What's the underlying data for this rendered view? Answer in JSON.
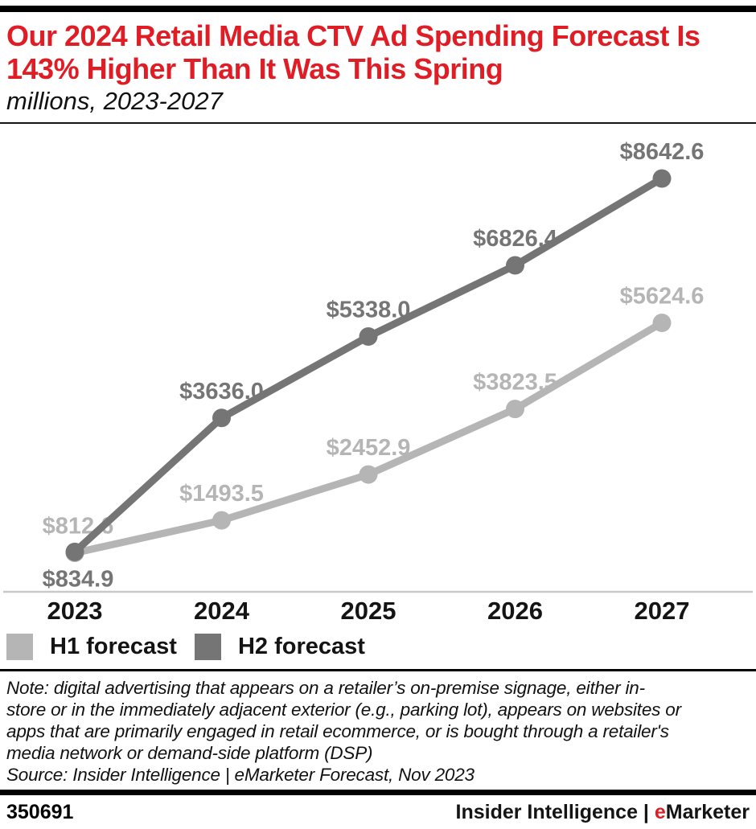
{
  "header": {
    "title_lines": [
      "Our 2024 Retail Media CTV Ad Spending Forecast Is",
      "143% Higher Than It Was This Spring"
    ],
    "subtitle": "millions, 2023-2027",
    "title_color": "#e01d25"
  },
  "chart_data": {
    "type": "line",
    "title": "Our 2024 Retail Media CTV Ad Spending Forecast Is 143% Higher Than It Was This Spring",
    "subtitle": "millions, 2023-2027",
    "units": "millions of US dollars",
    "categories": [
      "2023",
      "2024",
      "2025",
      "2026",
      "2027"
    ],
    "series": [
      {
        "name": "H1 forecast",
        "color": "#b5b5b5",
        "values": [
          812.6,
          1493.5,
          2452.9,
          3823.5,
          5624.6
        ],
        "labels": [
          "$812.6",
          "$1493.5",
          "$2452.9",
          "$3823.5",
          "$5624.6"
        ],
        "label_placement": [
          "above",
          "above",
          "above",
          "above",
          "above"
        ]
      },
      {
        "name": "H2 forecast",
        "color": "#757575",
        "values": [
          834.9,
          3636.0,
          5338.0,
          6826.4,
          8642.6
        ],
        "labels": [
          "$834.9",
          "$3636.0",
          "$5338.0",
          "$6826.4",
          "$8642.6"
        ],
        "label_placement": [
          "below",
          "above",
          "above",
          "above",
          "above"
        ]
      }
    ],
    "ylim": [
      0,
      9000
    ],
    "xlabel": "",
    "ylabel": "",
    "grid": false,
    "axis_color": "#c9c9c9",
    "legend_position": "bottom-left"
  },
  "notes": {
    "lines": [
      "Note: digital advertising that appears on a retailer’s on-premise signage, either in-",
      "store or in the immediately adjacent exterior (e.g., parking lot), appears on websites or",
      "apps that are primarily engaged in retail ecommerce, or is bought through a retailer's",
      "media network or demand-side platform (DSP)"
    ],
    "source": "Source: Insider Intelligence | eMarketer Forecast, Nov 2023"
  },
  "footer": {
    "chart_id": "350691",
    "brand": {
      "name": "Insider Intelligence",
      "separator": " | ",
      "e": "e",
      "rest": "Marketer"
    },
    "brand_e_color": "#e01d25"
  }
}
